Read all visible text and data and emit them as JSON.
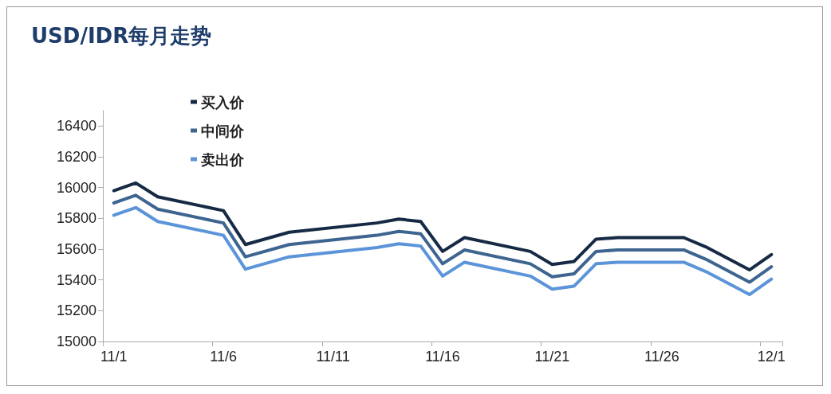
{
  "chart_data": {
    "type": "line",
    "title": "USD/IDR每月走势",
    "categories": [
      "11/1",
      null,
      null,
      null,
      null,
      "11/6",
      null,
      null,
      null,
      null,
      "11/11",
      null,
      null,
      null,
      null,
      "11/16",
      null,
      null,
      null,
      null,
      "11/21",
      null,
      null,
      null,
      null,
      "11/26",
      null,
      null,
      null,
      null,
      "12/1"
    ],
    "series": [
      {
        "name": "买入价",
        "color": "#172a45",
        "values": [
          15980,
          16030,
          15940,
          null,
          null,
          15850,
          15630,
          null,
          15710,
          null,
          null,
          null,
          15770,
          15795,
          15780,
          15585,
          15675,
          null,
          null,
          15585,
          15500,
          15520,
          15665,
          15675,
          null,
          null,
          15675,
          15615,
          null,
          15465,
          15565
        ]
      },
      {
        "name": "中间价",
        "color": "#3e6490",
        "values": [
          15900,
          15950,
          15860,
          null,
          null,
          15770,
          15550,
          null,
          15630,
          null,
          null,
          null,
          15690,
          15715,
          15700,
          15505,
          15595,
          null,
          null,
          15505,
          15420,
          15440,
          15585,
          15595,
          null,
          null,
          15595,
          15535,
          null,
          15385,
          15485
        ]
      },
      {
        "name": "卖出价",
        "color": "#5b94d9",
        "values": [
          15820,
          15870,
          15780,
          null,
          null,
          15690,
          15470,
          null,
          15550,
          null,
          null,
          null,
          15610,
          15635,
          15620,
          15425,
          15515,
          null,
          null,
          15425,
          15340,
          15360,
          15505,
          15515,
          null,
          null,
          15515,
          15455,
          null,
          15305,
          15405
        ]
      }
    ],
    "ylim": [
      15000,
      16500
    ],
    "yticks": [
      15000,
      15200,
      15400,
      15600,
      15800,
      16000,
      16200,
      16400
    ],
    "grid": false,
    "legend": "top left",
    "marker": "none",
    "line_style": "solid"
  }
}
